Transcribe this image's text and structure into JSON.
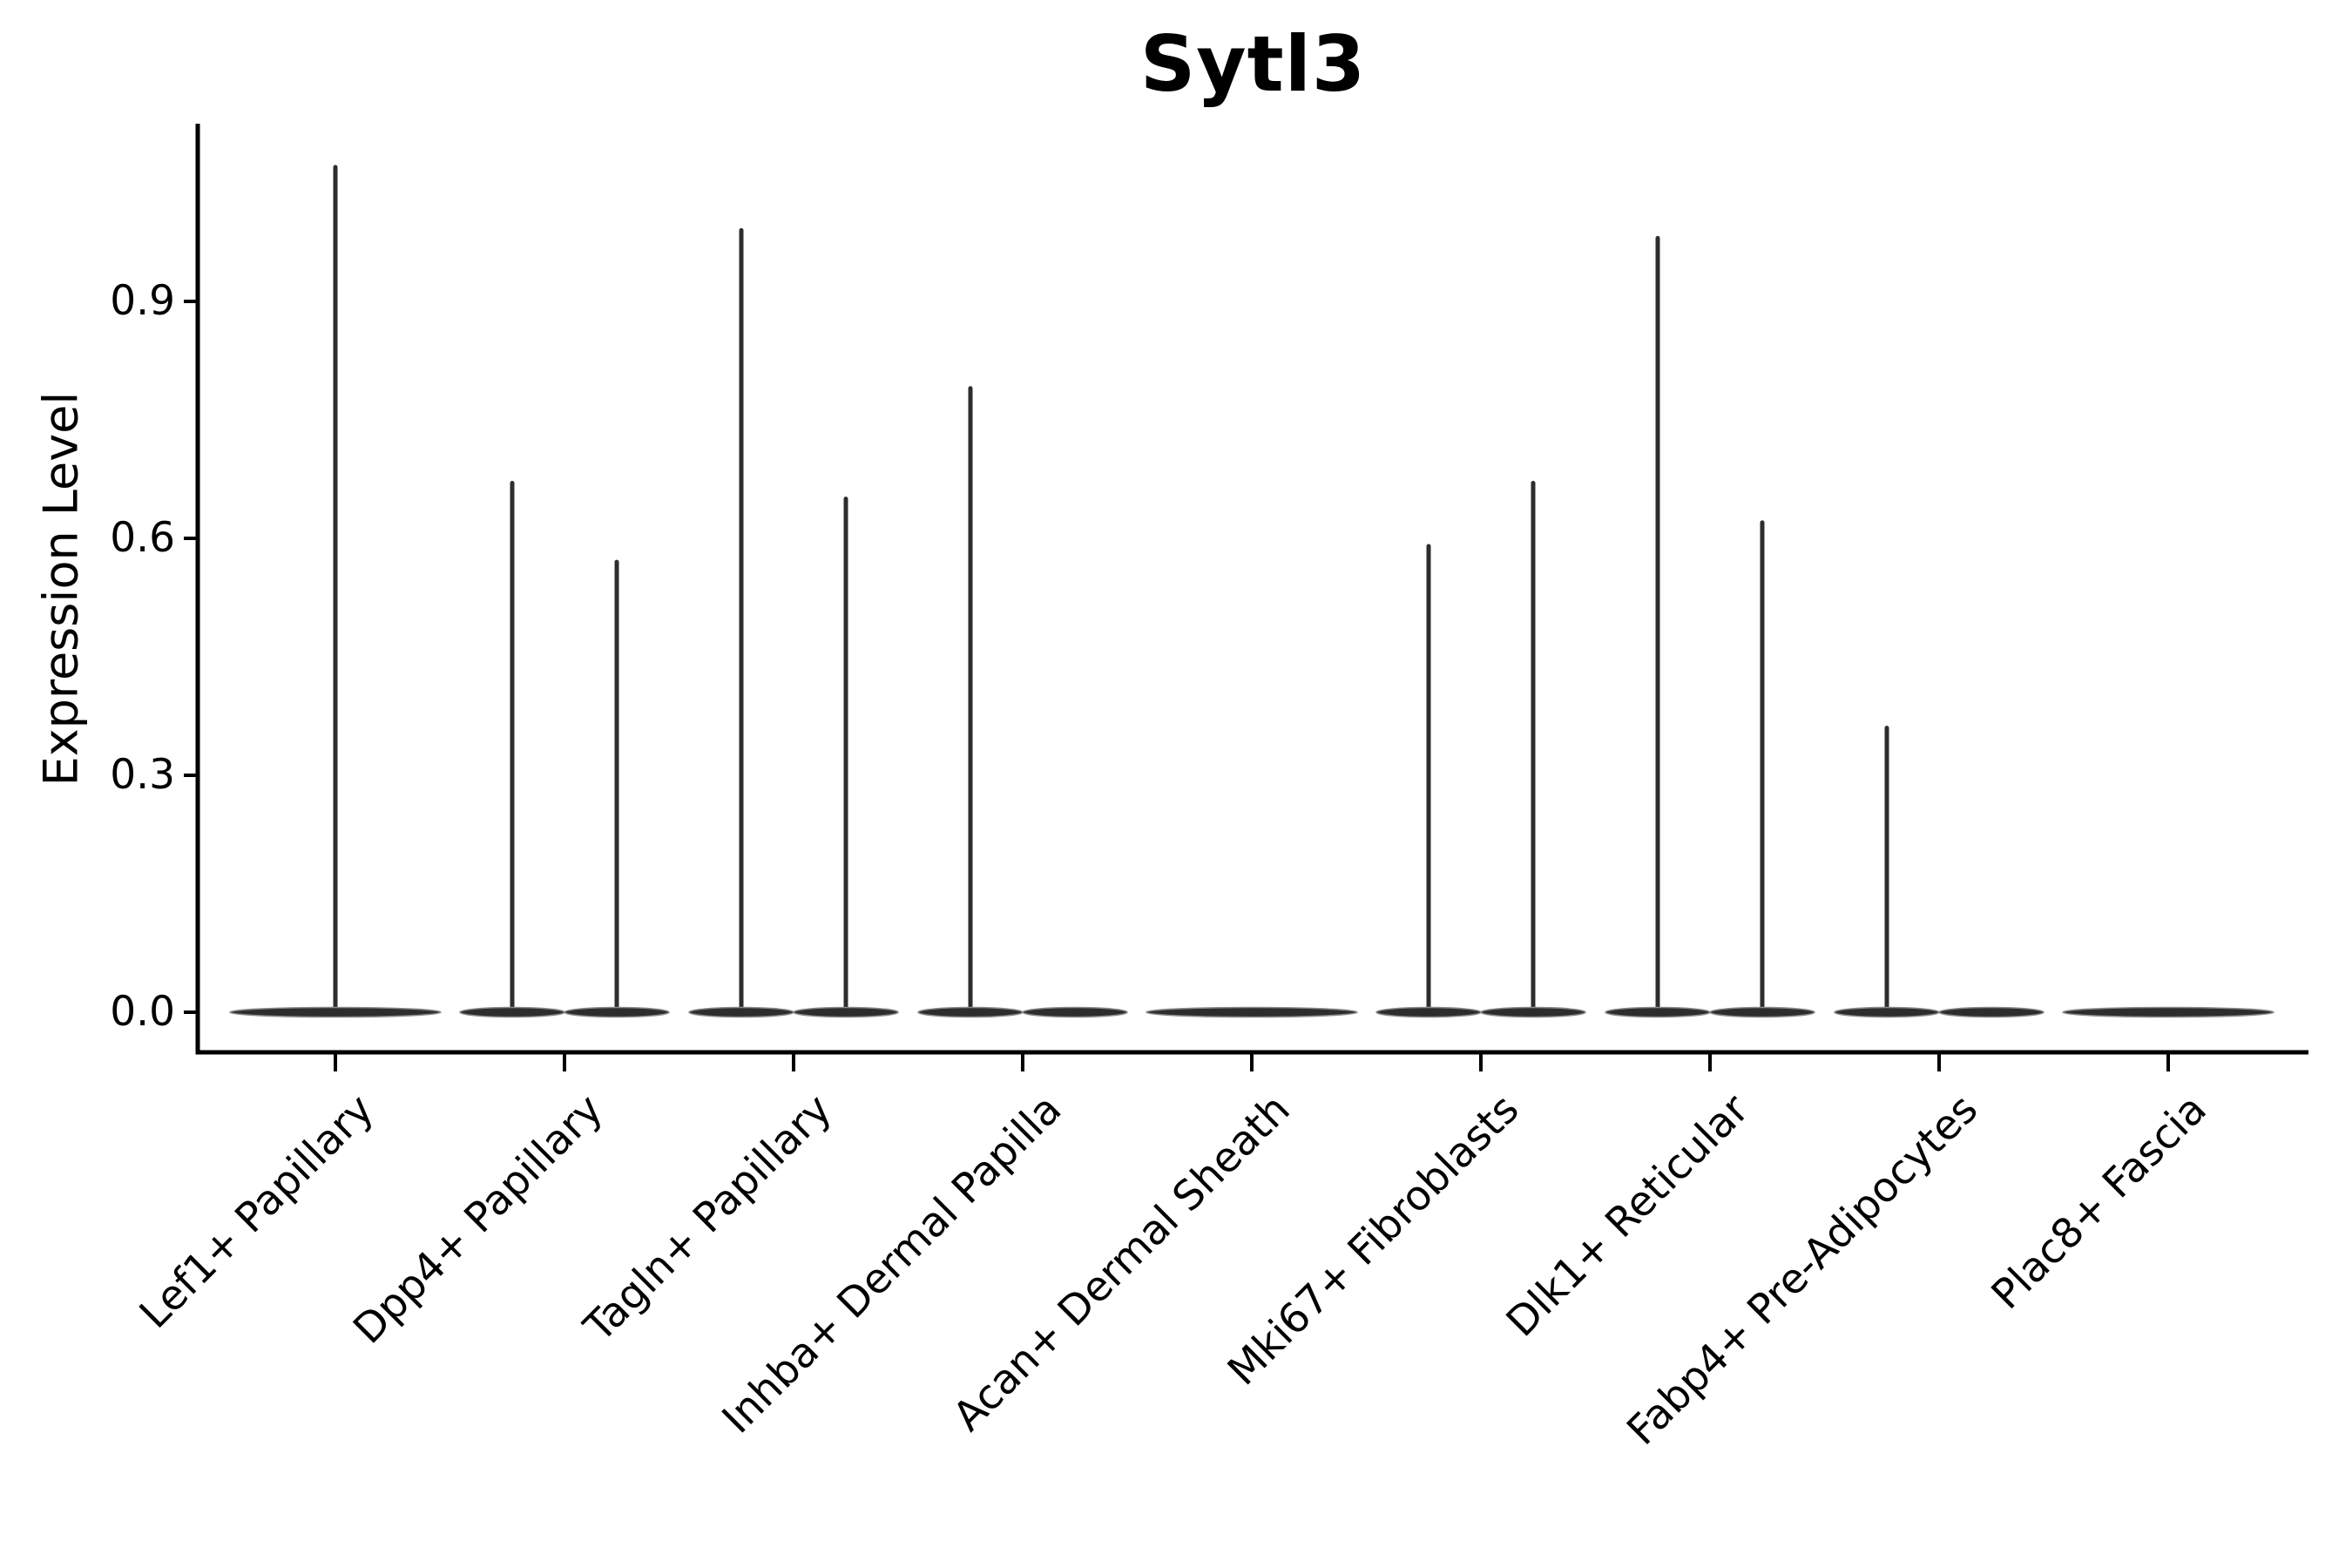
{
  "figure": {
    "background": "#ffffff",
    "ink_color": "#000000",
    "violin_color": "#2d2d2d",
    "violin_edge_color": "#8a8a8a"
  },
  "chart_data": {
    "type": "violin",
    "title": "Sytl3",
    "ylabel": "Expression Level",
    "xlabel": "",
    "grid": false,
    "legend_position": "none",
    "ylim": [
      0,
      1.125
    ],
    "ytick_labels": [
      "0.0",
      "0.3",
      "0.6",
      "0.9"
    ],
    "ytick_values": [
      0.0,
      0.3,
      0.6,
      0.9
    ],
    "categories": [
      "Lef1+ Papillary",
      "Dpp4+ Papillary",
      "Tagln+ Papillary",
      "Inhba+ Dermal Papilla",
      "Acan+ Dermal Sheath",
      "Mki67+ Fibroblasts",
      "Dlk1+ Reticular",
      "Fabp4+ Pre-Adipocytes",
      "Plac8+ Fascia"
    ],
    "violins": [
      {
        "category": "Lef1+ Papillary",
        "cat_index": 0,
        "position": "center",
        "max_expression": 1.07
      },
      {
        "category": "Dpp4+ Papillary",
        "cat_index": 1,
        "position": "left",
        "max_expression": 0.67
      },
      {
        "category": "Dpp4+ Papillary",
        "cat_index": 1,
        "position": "right",
        "max_expression": 0.57
      },
      {
        "category": "Tagln+ Papillary",
        "cat_index": 2,
        "position": "left",
        "max_expression": 0.99
      },
      {
        "category": "Tagln+ Papillary",
        "cat_index": 2,
        "position": "right",
        "max_expression": 0.65
      },
      {
        "category": "Inhba+ Dermal Papilla",
        "cat_index": 3,
        "position": "left",
        "max_expression": 0.79
      },
      {
        "category": "Inhba+ Dermal Papilla",
        "cat_index": 3,
        "position": "right",
        "max_expression": 0.0
      },
      {
        "category": "Acan+ Dermal Sheath",
        "cat_index": 4,
        "position": "center",
        "max_expression": 0.0
      },
      {
        "category": "Mki67+ Fibroblasts",
        "cat_index": 5,
        "position": "left",
        "max_expression": 0.59
      },
      {
        "category": "Mki67+ Fibroblasts",
        "cat_index": 5,
        "position": "right",
        "max_expression": 0.67
      },
      {
        "category": "Dlk1+ Reticular",
        "cat_index": 6,
        "position": "left",
        "max_expression": 0.98
      },
      {
        "category": "Dlk1+ Reticular",
        "cat_index": 6,
        "position": "right",
        "max_expression": 0.62
      },
      {
        "category": "Fabp4+ Pre-Adipocytes",
        "cat_index": 7,
        "position": "left",
        "max_expression": 0.36
      },
      {
        "category": "Fabp4+ Pre-Adipocytes",
        "cat_index": 7,
        "position": "right",
        "max_expression": 0.0
      },
      {
        "category": "Plac8+ Fascia",
        "cat_index": 8,
        "position": "center",
        "max_expression": 0.0
      }
    ]
  }
}
